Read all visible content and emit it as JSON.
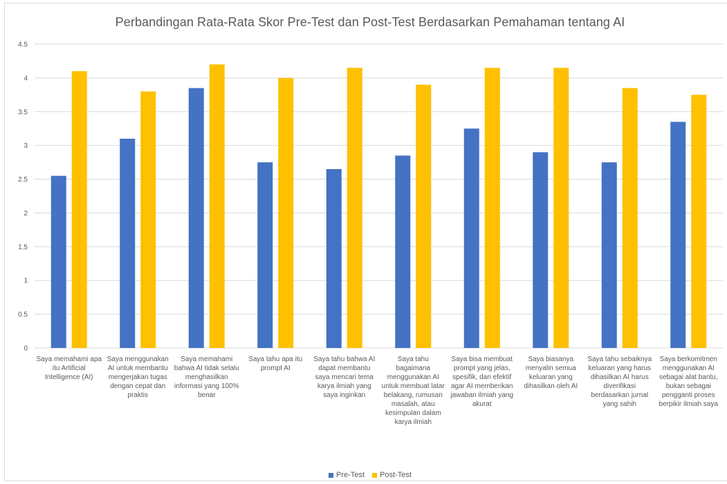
{
  "chart_data": {
    "type": "bar",
    "title": "Perbandingan Rata-Rata Skor Pre-Test dan Post-Test Berdasarkan Pemahaman tentang AI",
    "xlabel": "",
    "ylabel": "",
    "ylim": [
      0,
      4.5
    ],
    "yticks": [
      "0",
      "0.5",
      "1",
      "1.5",
      "2",
      "2.5",
      "3",
      "3.5",
      "4",
      "4.5"
    ],
    "grid": true,
    "legend_position": "bottom",
    "categories": [
      "Saya memahami apa itu Artificial Intelligence (AI)",
      "Saya menggunakan AI untuk membantu mengerjakan tugas dengan cepat dan praktis",
      "Saya memahami bahwa AI tidak selalu menghasilkan informasi yang 100% benar",
      "Saya tahu apa itu prompt AI",
      "Saya tahu bahwa AI dapat membantu saya mencari tema karya ilmiah yang saya inginkan",
      "Saya tahu bagaimana menggunakan AI untuk membuat latar belakang, rumusan masalah, atau kesimpulan dalam karya ilmiah",
      "Saya bisa membuat prompt yang jelas, spesifik, dan efektif agar AI memberikan jawaban ilmiah yang akurat",
      "Saya biasanya menyalin semua keluaran yang dihasilkan oleh AI",
      "Saya tahu sebaiknya keluaran yang harus dihasilkan AI harus diverifikasi berdasarkan jurnal yang sahih",
      "Saya berkomitmen menggunakan AI sebagai alat bantu, bukan sebagai pengganti proses berpikir ilmiah saya"
    ],
    "series": [
      {
        "name": "Pre-Test",
        "color": "#4472c4",
        "values": [
          2.55,
          3.1,
          3.85,
          2.75,
          2.65,
          2.85,
          3.25,
          2.9,
          2.75,
          3.35
        ]
      },
      {
        "name": "Post-Test",
        "color": "#ffc000",
        "values": [
          4.1,
          3.8,
          4.2,
          4.0,
          4.15,
          3.9,
          4.15,
          4.15,
          3.85,
          3.75
        ]
      }
    ]
  }
}
